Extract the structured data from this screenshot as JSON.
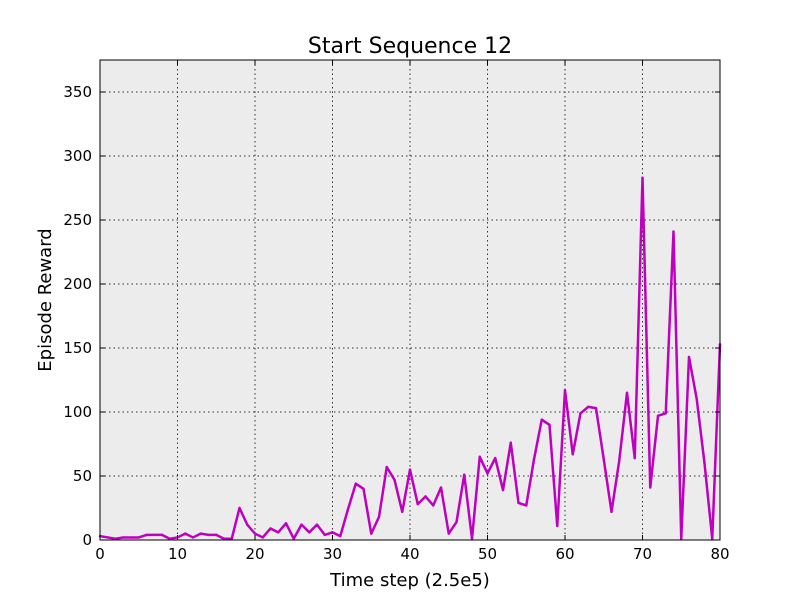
{
  "chart_data": {
    "type": "line",
    "title": "Start Sequence 12",
    "xlabel": "Time step (2.5e5)",
    "ylabel": "Episode Reward",
    "xlim": [
      0,
      80
    ],
    "ylim": [
      0,
      375
    ],
    "xticks": [
      0,
      10,
      20,
      30,
      40,
      50,
      60,
      70,
      80
    ],
    "yticks": [
      0,
      50,
      100,
      150,
      200,
      250,
      300,
      350
    ],
    "grid": true,
    "plot_background": "#ececec",
    "series": [
      {
        "color": "#bf00bf",
        "x": [
          0,
          1,
          2,
          3,
          4,
          5,
          6,
          7,
          8,
          9,
          10,
          11,
          12,
          13,
          14,
          15,
          16,
          17,
          18,
          19,
          20,
          21,
          22,
          23,
          24,
          25,
          26,
          27,
          28,
          29,
          30,
          31,
          32,
          33,
          34,
          35,
          36,
          37,
          38,
          39,
          40,
          41,
          42,
          43,
          44,
          45,
          46,
          47,
          48,
          49,
          50,
          51,
          52,
          53,
          54,
          55,
          56,
          57,
          58,
          59,
          60,
          61,
          62,
          63,
          64,
          65,
          66,
          67,
          68,
          69,
          70,
          71,
          72,
          73,
          74,
          75,
          76,
          77,
          78,
          79,
          80
        ],
        "values": [
          3,
          2,
          1,
          2,
          2,
          2,
          4,
          4,
          4,
          1,
          2,
          5,
          2,
          5,
          4,
          4,
          1,
          1,
          25,
          12,
          5,
          2,
          9,
          6,
          13,
          1,
          12,
          6,
          12,
          4,
          6,
          3,
          24,
          44,
          40,
          5,
          18,
          57,
          47,
          22,
          55,
          28,
          34,
          27,
          41,
          5,
          14,
          51,
          1,
          65,
          52,
          64,
          39,
          76,
          29,
          27,
          63,
          94,
          90,
          11,
          117,
          67,
          99,
          104,
          103,
          63,
          22,
          62,
          115,
          64,
          283,
          41,
          97,
          99,
          241,
          1,
          143,
          110,
          60,
          1,
          153
        ]
      }
    ]
  }
}
